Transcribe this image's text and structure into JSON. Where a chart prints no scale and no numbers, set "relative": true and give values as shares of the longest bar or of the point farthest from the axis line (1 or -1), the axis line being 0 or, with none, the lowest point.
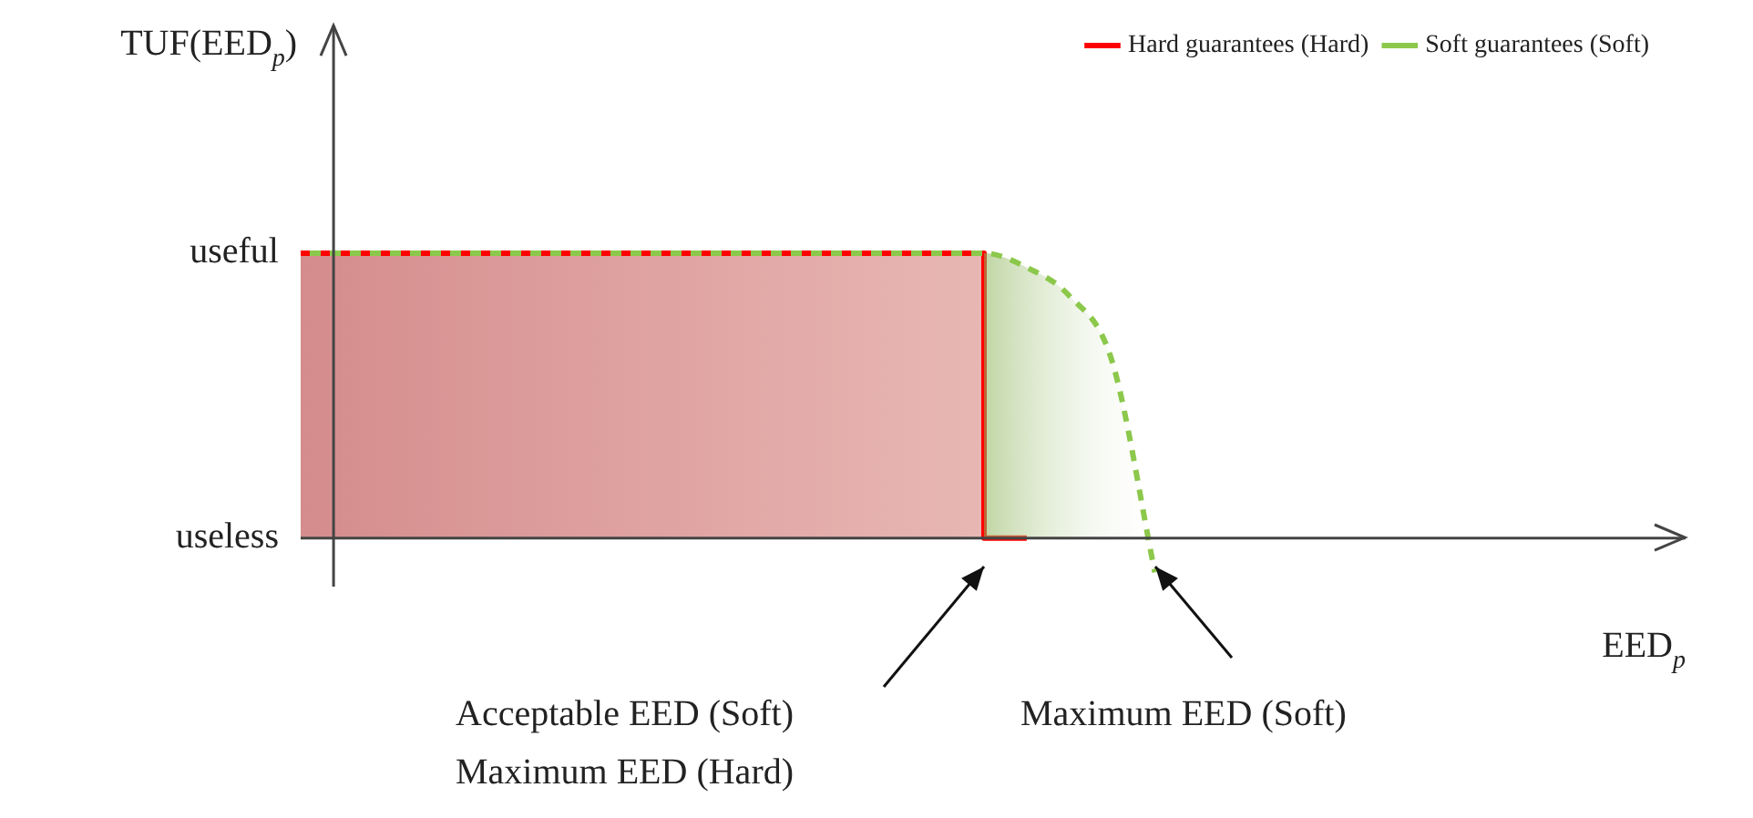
{
  "chart_data": {
    "type": "line",
    "xlabel": "EED$_{p}$",
    "ylabel": "TUF(EED$_{p}$)",
    "categories": [
      null,
      null,
      null,
      null,
      null,
      null,
      null,
      null,
      null,
      null,
      null,
      null,
      null,
      null,
      null,
      null,
      null,
      null,
      null,
      null,
      null,
      null,
      null,
      null,
      null,
      null,
      null,
      null,
      null,
      null,
      null,
      null,
      null
    ],
    "series": [
      {
        "name": "Hard guarantees (Hard)",
        "type": "step",
        "color": "#ff0000",
        "line_style": "solid",
        "values": [
          1,
          1,
          1,
          1,
          1,
          1,
          1,
          1,
          1,
          1,
          1,
          1,
          1,
          1,
          1,
          1,
          1,
          0,
          null,
          null,
          null,
          null,
          null,
          null,
          null,
          null,
          null,
          null,
          null,
          null,
          null,
          null,
          null
        ]
      },
      {
        "name": "Soft guarantees (Soft)",
        "type": "line",
        "color": "#8cc84b",
        "line_style": "dashed",
        "values": [
          1,
          1,
          1,
          1,
          1,
          1,
          1,
          1,
          1,
          1,
          1,
          1,
          1,
          1,
          1,
          1,
          1,
          0.95,
          0.85,
          0.62,
          -0.12,
          null,
          null,
          null,
          null,
          null,
          null,
          null,
          null,
          null,
          null,
          null,
          null
        ]
      }
    ],
    "relative": true,
    "grid": false,
    "legend": "top right",
    "marker": "none",
    "annotations": [
      "useful",
      "useless",
      "Acceptable EED (Soft)\nMaximum EED (Hard)",
      "Maximum EED (Soft)"
    ]
  }
}
